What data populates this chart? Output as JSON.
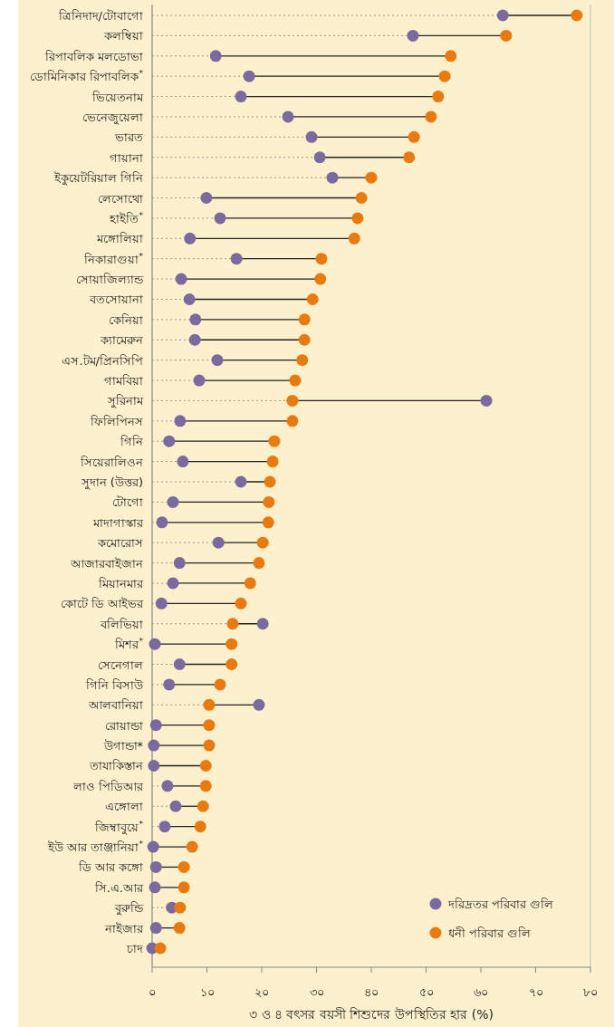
{
  "chart_data": {
    "type": "lollipop",
    "orientation": "horizontal",
    "xlabel": "৩ ও ৪ বৎসর বয়সী শিশুদের উপস্থিতির হার (%)",
    "categories": [
      "ত্রিনিদাদ/টোবাগো",
      "কলম্বিয়া",
      "রিপাবলিক মলডোভা",
      "ডোমিনিকার রিপাবলিক$^{*}$",
      "ভিয়েতনাম",
      "ভেনেজুয়েলা",
      "ভারত",
      "গায়ানা",
      "ইকুয়েটরিয়াল গিনি",
      "লেসোথো",
      "হাইতি$^{*}$",
      "মঙ্গোলিয়া",
      "নিকারাগুয়া$^{*}$",
      "সোয়াজিল্যান্ড",
      "বতসোয়ানা",
      "কেনিয়া",
      "ক্যামেরুন",
      "এস.টম/প্রিনসিপি",
      "গামবিয়া",
      "সুরিনাম",
      "ফিলিপিনস",
      "গিনি",
      "সিয়েরালিওন",
      "সুদান (উত্তর)",
      "টোগো",
      "মাদাগাস্কার",
      "কমোরোস",
      "আজারবাইজান",
      "মিয়ানমার",
      "কোটে ডি আইভর",
      "বলিভিয়া",
      "মিশর$^{*}$",
      "সেনেগাল",
      "গিনি বিসাউ",
      "আলবানিয়া",
      "রোয়ান্ডা",
      "উগান্ডা*",
      "তাযাকিস্তান",
      "লাও পিডিআর",
      "এঙ্গোলা",
      "জিম্বাবুয়ে$^{*}$",
      "ইউ আর তাঞ্জানিয়া$^{*}$",
      "ডি আর কঙ্গো",
      "সি.এ.আর",
      "বুরুন্ডি",
      "নাইজার",
      "চাদ"
    ],
    "series": [
      {
        "name": "দরিদ্রতর পরিবার গুলি",
        "color": "#7b6aa0",
        "values": [
          64.0,
          47.6,
          11.6,
          17.7,
          16.2,
          24.8,
          29.1,
          30.6,
          32.9,
          9.9,
          12.4,
          6.9,
          15.4,
          5.3,
          6.8,
          7.9,
          7.8,
          11.9,
          8.6,
          61.0,
          5.1,
          3.1,
          5.6,
          16.2,
          3.8,
          1.8,
          12.1,
          5.0,
          3.8,
          1.7,
          20.2,
          0.5,
          5.0,
          3.1,
          19.5,
          0.7,
          0.3,
          0.3,
          2.8,
          4.3,
          2.3,
          0.2,
          0.7,
          0.5,
          3.6,
          0.7,
          0.0
        ]
      },
      {
        "name": "ধনী পরিবার গুলি",
        "color": "#e87a0f",
        "values": [
          77.5,
          64.6,
          54.5,
          53.4,
          52.2,
          50.9,
          47.8,
          46.9,
          40.0,
          38.2,
          37.5,
          36.9,
          30.9,
          30.7,
          29.3,
          27.8,
          27.8,
          27.4,
          26.1,
          25.6,
          25.6,
          22.3,
          22.0,
          21.5,
          21.3,
          21.2,
          20.2,
          19.5,
          17.9,
          16.2,
          14.7,
          14.5,
          14.5,
          12.4,
          10.4,
          10.4,
          10.4,
          9.8,
          9.8,
          9.3,
          8.8,
          7.3,
          5.8,
          5.8,
          5.1,
          5.0,
          1.5
        ]
      }
    ],
    "xlim": [
      0,
      80
    ],
    "xticks": [
      {
        "value": 0,
        "label": "০"
      },
      {
        "value": 10,
        "label": "১০"
      },
      {
        "value": 20,
        "label": "২০"
      },
      {
        "value": 30,
        "label": "৩০"
      },
      {
        "value": 40,
        "label": "৪০"
      },
      {
        "value": 50,
        "label": "৫০"
      },
      {
        "value": 60,
        "label": "৬০"
      },
      {
        "value": 70,
        "label": "৭০"
      },
      {
        "value": 80,
        "label": "৮০"
      }
    ],
    "legend": "bottom right",
    "marker": "circle",
    "grid": false
  }
}
